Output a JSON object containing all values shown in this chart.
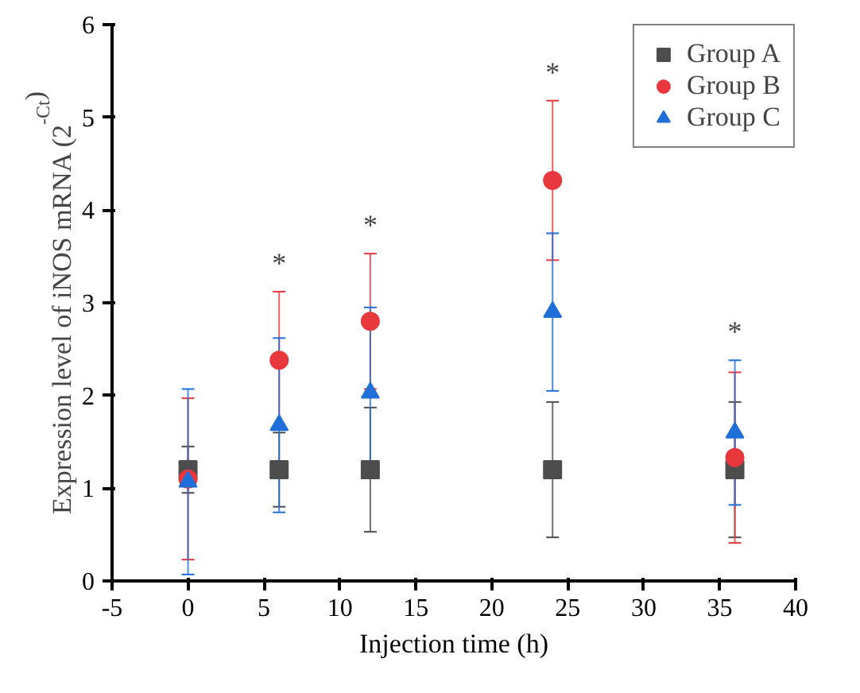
{
  "chart_data": {
    "type": "scatter",
    "xlabel": "Injection time (h)",
    "ylabel": "Expression level of iNOS mRNA (2$^{-Ct}$)",
    "x": [
      0,
      6,
      12,
      24,
      36
    ],
    "series": [
      {
        "name": "Group A",
        "color": "#4d4d4d",
        "marker": "square",
        "values": [
          1.2,
          1.2,
          1.2,
          1.2,
          1.2
        ],
        "errors": [
          0.25,
          0.4,
          0.67,
          0.73,
          0.73
        ]
      },
      {
        "name": "Group B",
        "color": "#e8383d",
        "marker": "circle",
        "values": [
          1.1,
          2.38,
          2.8,
          4.32,
          1.33
        ],
        "errors": [
          0.87,
          0.74,
          0.73,
          0.86,
          0.92
        ]
      },
      {
        "name": "Group C",
        "color": "#1f6fd8",
        "marker": "triangle",
        "values": [
          1.07,
          1.68,
          2.03,
          2.9,
          1.6
        ],
        "errors": [
          1.0,
          0.94,
          0.92,
          0.85,
          0.78
        ]
      }
    ],
    "annotations": [
      "*",
      "*",
      "*",
      "*"
    ],
    "xlim": [
      -5,
      40
    ],
    "xticks": [
      -5,
      0,
      5,
      10,
      15,
      20,
      25,
      30,
      35,
      40
    ],
    "ylim": [
      0,
      6
    ],
    "yticks": [
      0,
      1,
      2,
      3,
      4,
      5,
      6
    ],
    "grid": false,
    "legend": "top right"
  }
}
